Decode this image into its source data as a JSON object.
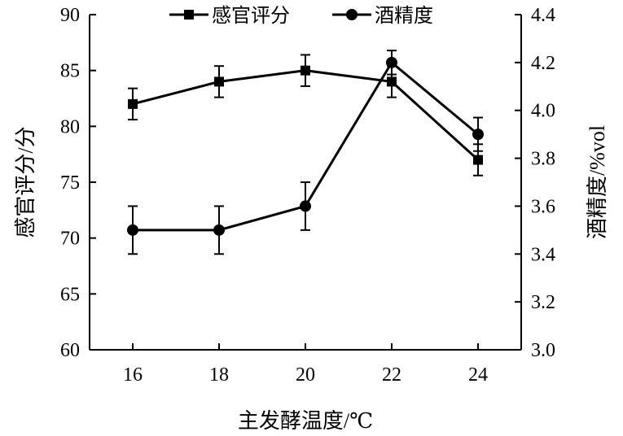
{
  "chart_data": {
    "type": "line",
    "title": "",
    "xlabel": "主发酵温度/℃",
    "ylabel_left": "感官评分/分",
    "ylabel_right": "酒精度/%vol",
    "x": [
      16,
      18,
      20,
      22,
      24
    ],
    "xticks": [
      "16",
      "18",
      "20",
      "22",
      "24"
    ],
    "ylim_left": [
      60,
      90
    ],
    "yticks_left": [
      "60",
      "65",
      "70",
      "75",
      "80",
      "85",
      "90"
    ],
    "ylim_right": [
      3.0,
      4.4
    ],
    "yticks_right": [
      "3.0",
      "3.2",
      "3.4",
      "3.6",
      "3.8",
      "4.0",
      "4.2",
      "4.4"
    ],
    "grid": false,
    "legend_position": "top",
    "series": [
      {
        "name": "感官评分",
        "axis": "left",
        "marker": "square",
        "values": [
          82,
          84,
          85,
          84,
          77
        ],
        "error": [
          1.4,
          1.4,
          1.4,
          1.4,
          1.4
        ]
      },
      {
        "name": "酒精度",
        "axis": "right",
        "marker": "circle",
        "values": [
          3.5,
          3.5,
          3.6,
          4.2,
          3.9
        ],
        "error": [
          0.1,
          0.1,
          0.1,
          0.05,
          0.07
        ]
      }
    ]
  }
}
